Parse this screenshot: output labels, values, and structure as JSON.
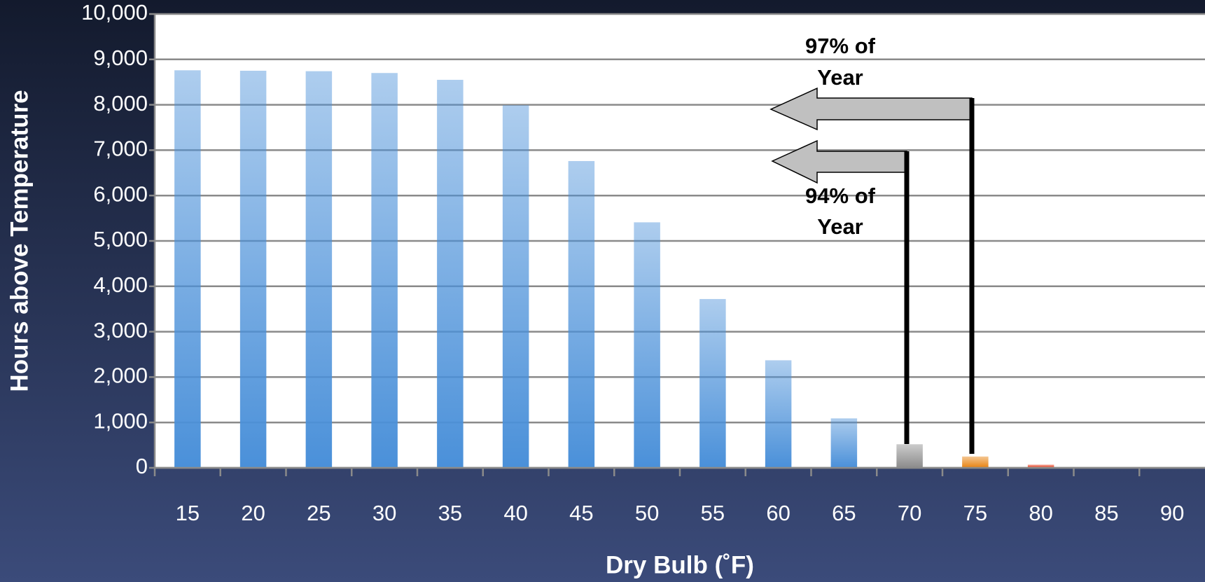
{
  "chart_data": {
    "type": "bar",
    "xlabel": "Dry Bulb (˚F)",
    "ylabel": "Hours above Temperature",
    "categories": [
      "15",
      "20",
      "25",
      "30",
      "35",
      "40",
      "45",
      "50",
      "55",
      "60",
      "65",
      "70",
      "75",
      "80",
      "85",
      "90"
    ],
    "values": [
      8760,
      8750,
      8740,
      8700,
      8550,
      7990,
      6760,
      5410,
      3720,
      2370,
      1090,
      520,
      250,
      70,
      0,
      0
    ],
    "colors": [
      "#4a90d9",
      "#4a90d9",
      "#4a90d9",
      "#4a90d9",
      "#4a90d9",
      "#4a90d9",
      "#4a90d9",
      "#4a90d9",
      "#4a90d9",
      "#4a90d9",
      "#4a90d9",
      "#8c8c8c",
      "#e8820f",
      "#e83a1a",
      "#4a90d9",
      "#4a90d9"
    ],
    "ylim": [
      0,
      10000
    ],
    "yticks": [
      0,
      {
        "value": 1000,
        "label": "1,000"
      },
      {
        "value": 2000,
        "label": "2,000"
      },
      {
        "value": 3000,
        "label": "3,000"
      },
      {
        "value": 4000,
        "label": "4,000"
      },
      {
        "value": 5000,
        "label": "5,000"
      },
      {
        "value": 6000,
        "label": "6,000"
      },
      {
        "value": 7000,
        "label": "7,000"
      },
      {
        "value": 8000,
        "label": "8,000"
      },
      {
        "value": 9000,
        "label": "9,000"
      },
      {
        "value": 10000,
        "label": "10,000"
      }
    ],
    "grid": true,
    "annotations": [
      [
        "97% of",
        "Year"
      ],
      [
        "94% of",
        "Year"
      ]
    ]
  }
}
